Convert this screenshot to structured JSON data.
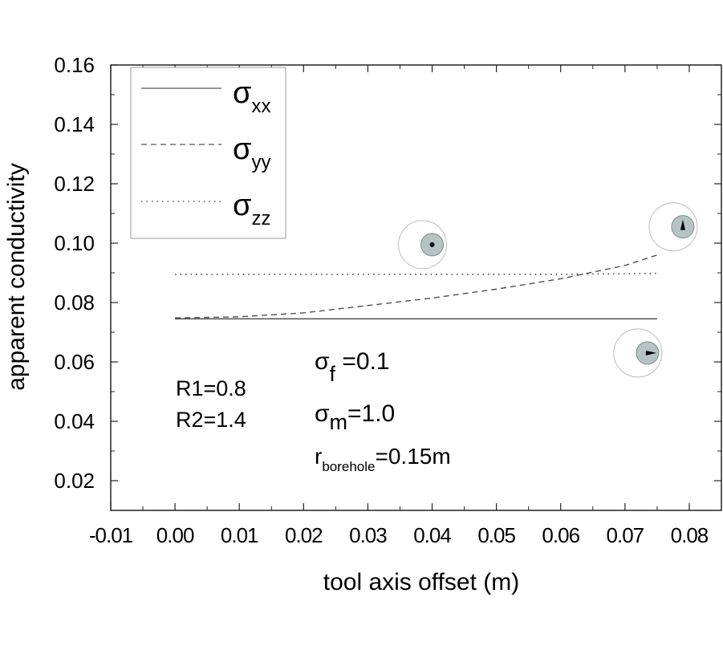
{
  "chart_data": {
    "type": "line",
    "xlabel": "tool  axis offset (m)",
    "ylabel": "apparent conductivity",
    "xlim": [
      -0.01,
      0.085
    ],
    "ylim": [
      0.01,
      0.16
    ],
    "x_ticks": [
      "-0.01",
      "0.00",
      "0.01",
      "0.02",
      "0.03",
      "0.04",
      "0.05",
      "0.06",
      "0.07",
      "0.08"
    ],
    "x_tick_values": [
      -0.01,
      0.0,
      0.01,
      0.02,
      0.03,
      0.04,
      0.05,
      0.06,
      0.07,
      0.08
    ],
    "y_ticks": [
      "0.02",
      "0.04",
      "0.06",
      "0.08",
      "0.10",
      "0.12",
      "0.14",
      "0.16"
    ],
    "y_tick_values": [
      0.02,
      0.04,
      0.06,
      0.08,
      0.1,
      0.12,
      0.14,
      0.16
    ],
    "grid": false,
    "legend_position": "top-left",
    "series": [
      {
        "name": "σxx",
        "symbol": "σ",
        "subscript": "xx",
        "style": "solid",
        "x": [
          0.0,
          0.01,
          0.02,
          0.03,
          0.04,
          0.05,
          0.06,
          0.07,
          0.075
        ],
        "y": [
          0.0745,
          0.0745,
          0.0745,
          0.0745,
          0.0745,
          0.0745,
          0.0745,
          0.0745,
          0.0745
        ]
      },
      {
        "name": "σyy",
        "symbol": "σ",
        "subscript": "yy",
        "style": "dashed",
        "x": [
          0.0,
          0.01,
          0.02,
          0.03,
          0.04,
          0.05,
          0.06,
          0.07,
          0.075
        ],
        "y": [
          0.0748,
          0.0752,
          0.0765,
          0.079,
          0.0815,
          0.0845,
          0.088,
          0.0925,
          0.096
        ]
      },
      {
        "name": "σzz",
        "symbol": "σ",
        "subscript": "zz",
        "style": "dotted",
        "x": [
          0.0,
          0.01,
          0.02,
          0.03,
          0.04,
          0.05,
          0.06,
          0.07,
          0.075
        ],
        "y": [
          0.0895,
          0.0895,
          0.0895,
          0.0895,
          0.0895,
          0.0895,
          0.0895,
          0.0897,
          0.0898
        ]
      }
    ],
    "annotations": {
      "r1": "R1=0.8",
      "r2": "R2=1.4",
      "sigma_f": {
        "symbol": "σ",
        "sub": "f",
        "value": " =0.1"
      },
      "sigma_m": {
        "symbol": "σ",
        "sub": "m",
        "value": "=1.0"
      },
      "r_borehole": {
        "symbol": "r",
        "sub": "borehole",
        "value": "=0.15m"
      }
    },
    "borehole_insets": [
      {
        "x": 0.04,
        "y": 0.0995,
        "pointer": "none"
      },
      {
        "x": 0.079,
        "y": 0.1055,
        "pointer": "up"
      },
      {
        "x": 0.0735,
        "y": 0.063,
        "pointer": "right"
      }
    ]
  }
}
